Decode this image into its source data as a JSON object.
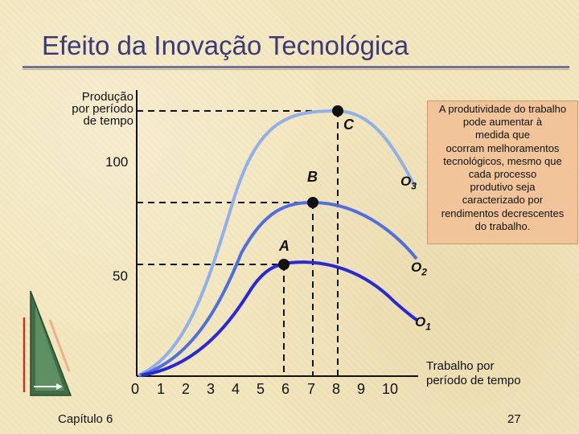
{
  "title": "Efeito da Inovação Tecnológica",
  "footer": {
    "chapter": "Capítulo 6",
    "page": "27"
  },
  "axes": {
    "ylabel_lines": [
      "Produção",
      "por período",
      "de tempo"
    ],
    "xlabel_lines": [
      "Trabalho por",
      "período de tempo"
    ],
    "y_ticks": [
      "100",
      "50"
    ],
    "x_ticks": [
      "0",
      "1",
      "2",
      "3",
      "4",
      "5",
      "6",
      "7",
      "8",
      "9",
      "10"
    ]
  },
  "points": {
    "A": "A",
    "B": "B",
    "C": "C"
  },
  "curves": {
    "o1": {
      "base": "O",
      "sub": "1",
      "color": "#2828d8"
    },
    "o2": {
      "base": "O",
      "sub": "2",
      "color": "#4f6fe0"
    },
    "o3": {
      "base": "O",
      "sub": "3",
      "color": "#8fb0ea"
    }
  },
  "note_lines": [
    "A produtividade do trabalho",
    "pode aumentar à",
    "medida que",
    "ocorram melhoramentos",
    "tecnológicos, mesmo que",
    "cada processo",
    "produtivo seja",
    "caracterizado por",
    "rendimentos decrescentes",
    "do trabalho."
  ]
}
